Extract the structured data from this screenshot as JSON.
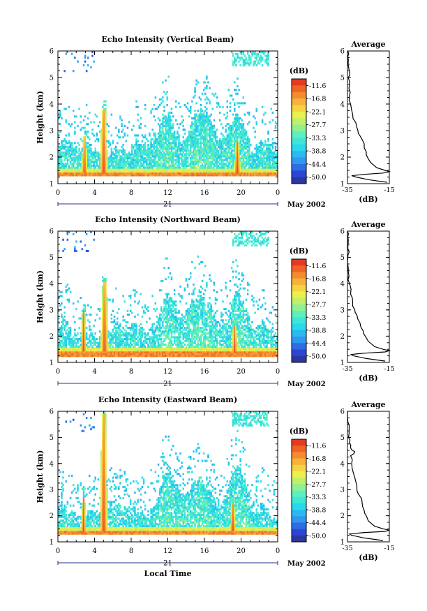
{
  "chart_data": [
    {
      "type": "heatmap",
      "title": "Echo Intensity (Vertical Beam)",
      "ylabel": "Height (km)",
      "xlabel": "",
      "xticks": [
        "0",
        "4",
        "8",
        "12",
        "16",
        "20",
        "0"
      ],
      "yticks": [
        "1",
        "2",
        "3",
        "4",
        "5",
        "6"
      ],
      "xlim": [
        0,
        24
      ],
      "ylim": [
        1,
        6
      ],
      "date_label": "21",
      "month_label": "May 2002",
      "colorbar": {
        "unit": "(dB)",
        "ticks": [
          "-11.6",
          "-16.8",
          "-22.1",
          "-27.7",
          "-33.3",
          "-38.8",
          "-44.4",
          "-50.0"
        ],
        "range": [
          -50,
          -8
        ]
      },
      "surface_layer": {
        "top": 1.45,
        "bottom": 1.28,
        "value": -10
      },
      "spikes": [
        {
          "t": 2.9,
          "top": 2.8,
          "width": 0.35
        },
        {
          "t": 5.0,
          "top": 3.8,
          "width": 0.45
        },
        {
          "t": 19.6,
          "top": 2.6,
          "width": 0.4
        }
      ],
      "clutter": {
        "base_top": 2.3,
        "intensity": 0.85
      },
      "average": {
        "title": "Average",
        "xlabel": "(dB)",
        "xticks": [
          "-35",
          "-15"
        ],
        "xlim": [
          -35,
          -15
        ],
        "height": [
          1.05,
          1.15,
          1.25,
          1.3,
          1.35,
          1.4,
          1.45,
          1.5,
          1.6,
          1.8,
          2.0,
          2.2,
          2.5,
          2.8,
          3.0,
          3.3,
          3.6,
          4.0,
          4.3,
          4.6,
          5.0,
          5.2,
          5.5,
          5.8,
          6.0
        ],
        "value": [
          -16,
          -25,
          -31,
          -33,
          -27,
          -18,
          -15,
          -17,
          -21,
          -24,
          -25.5,
          -26,
          -27,
          -29,
          -30,
          -31,
          -32.5,
          -33.5,
          -34,
          -34.3,
          -34.6,
          -34,
          -34.7,
          -34.8,
          -34.9
        ]
      }
    },
    {
      "type": "heatmap",
      "title": "Echo Intensity (Northward Beam)",
      "ylabel": "Height (km)",
      "xlabel": "",
      "xticks": [
        "0",
        "4",
        "8",
        "12",
        "16",
        "20",
        "0"
      ],
      "yticks": [
        "1",
        "2",
        "3",
        "4",
        "5",
        "6"
      ],
      "xlim": [
        0,
        24
      ],
      "ylim": [
        1,
        6
      ],
      "date_label": "21",
      "month_label": "May 2002",
      "colorbar": {
        "unit": "(dB)",
        "ticks": [
          "-11.6",
          "-16.8",
          "-22.1",
          "-27.7",
          "-33.3",
          "-38.8",
          "-44.4",
          "-50.0"
        ],
        "range": [
          -50,
          -8
        ]
      },
      "surface_layer": {
        "top": 1.4,
        "bottom": 1.25,
        "value": -10
      },
      "spikes": [
        {
          "t": 2.8,
          "top": 2.9,
          "width": 0.35
        },
        {
          "t": 5.1,
          "top": 4.1,
          "width": 0.45
        },
        {
          "t": 19.3,
          "top": 2.4,
          "width": 0.35
        }
      ],
      "clutter": {
        "base_top": 2.2,
        "intensity": 0.75
      },
      "average": {
        "title": "Average",
        "xlabel": "(dB)",
        "xticks": [
          "-35",
          "-15"
        ],
        "xlim": [
          -35,
          -15
        ],
        "height": [
          1.05,
          1.15,
          1.25,
          1.3,
          1.35,
          1.4,
          1.45,
          1.5,
          1.6,
          1.8,
          2.0,
          2.2,
          2.5,
          2.8,
          3.0,
          3.3,
          3.6,
          4.0,
          4.3,
          4.6,
          5.0,
          5.2,
          5.5,
          5.8,
          6.0
        ],
        "value": [
          -17,
          -26,
          -32,
          -33.5,
          -27,
          -17,
          -15,
          -18,
          -22,
          -25,
          -26.5,
          -27.5,
          -29,
          -30.5,
          -31.5,
          -32.5,
          -33.5,
          -34,
          -34.3,
          -34.6,
          -34.8,
          -34.2,
          -34.7,
          -34.8,
          -35
        ]
      }
    },
    {
      "type": "heatmap",
      "title": "Echo Intensity (Eastward Beam)",
      "ylabel": "Height (km)",
      "xlabel": "Local Time",
      "xticks": [
        "0",
        "4",
        "8",
        "12",
        "16",
        "20",
        "0"
      ],
      "yticks": [
        "1",
        "2",
        "3",
        "4",
        "5",
        "6"
      ],
      "xlim": [
        0,
        24
      ],
      "ylim": [
        1,
        6
      ],
      "date_label": "21",
      "month_label": "May 2002",
      "colorbar": {
        "unit": "(dB)",
        "ticks": [
          "-11.6",
          "-16.8",
          "-22.1",
          "-27.7",
          "-33.3",
          "-38.8",
          "-44.4",
          "-50.0"
        ],
        "range": [
          -50,
          -8
        ]
      },
      "surface_layer": {
        "top": 1.42,
        "bottom": 1.26,
        "value": -10
      },
      "spikes": [
        {
          "t": 2.8,
          "top": 2.7,
          "width": 0.3
        },
        {
          "t": 5.0,
          "top": 5.9,
          "width": 0.45
        },
        {
          "t": 19.1,
          "top": 2.5,
          "width": 0.35
        }
      ],
      "clutter": {
        "base_top": 2.2,
        "intensity": 0.8
      },
      "average": {
        "title": "Average",
        "xlabel": "(dB)",
        "xticks": [
          "-35",
          "-15"
        ],
        "xlim": [
          -35,
          -15
        ],
        "height": [
          1.05,
          1.15,
          1.25,
          1.3,
          1.35,
          1.4,
          1.45,
          1.5,
          1.6,
          1.8,
          2.0,
          2.2,
          2.5,
          2.8,
          3.0,
          3.3,
          3.6,
          4.0,
          4.3,
          4.45,
          4.6,
          4.8,
          5.0,
          5.3,
          5.6,
          6.0
        ],
        "value": [
          -18,
          -27,
          -33,
          -34,
          -28,
          -17,
          -15,
          -18,
          -22,
          -25,
          -26,
          -27,
          -28,
          -29.5,
          -30.5,
          -31,
          -32,
          -33,
          -33.5,
          -31.5,
          -33.5,
          -34,
          -34.5,
          -34.2,
          -34.8,
          -35
        ]
      }
    }
  ]
}
